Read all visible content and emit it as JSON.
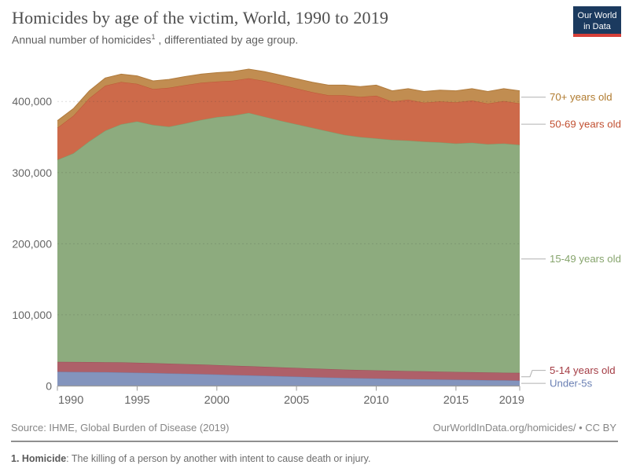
{
  "header": {
    "title": "Homicides by age of the victim, World, 1990 to 2019",
    "subtitle_pre": "Annual number of homicides",
    "subtitle_sup": "1",
    "subtitle_post": " , differentiated by age group.",
    "logo_line1": "Our World",
    "logo_line2": "in Data",
    "logo_bg": "#1b3a5f",
    "logo_stripe": "#d63f38"
  },
  "footer": {
    "source": "Source: IHME, Global Burden of Disease (2019)",
    "attribution": "OurWorldInData.org/homicides/ • CC BY"
  },
  "footnote": {
    "term": "1. Homicide",
    "rest": ": The killing of a person by another with intent to cause death or injury."
  },
  "chart_data": {
    "type": "area",
    "stacked": true,
    "title": "Homicides by age of the victim, World, 1990 to 2019",
    "ylabel": "Annual number of homicides",
    "legend_position": "right",
    "grid": "horizontal-dashed",
    "ylim": [
      0,
      400000
    ],
    "x": [
      1990,
      1991,
      1992,
      1993,
      1994,
      1995,
      1996,
      1997,
      1998,
      1999,
      2000,
      2001,
      2002,
      2003,
      2004,
      2005,
      2006,
      2007,
      2008,
      2009,
      2010,
      2011,
      2012,
      2013,
      2014,
      2015,
      2016,
      2017,
      2018,
      2019
    ],
    "x_ticks": [
      1990,
      1995,
      2000,
      2005,
      2010,
      2015,
      2019
    ],
    "y_ticks": [
      {
        "value": 0,
        "label": "0"
      },
      {
        "value": 100000,
        "label": "100,000"
      },
      {
        "value": 200000,
        "label": "200,000"
      },
      {
        "value": 300000,
        "label": "300,000"
      },
      {
        "value": 400000,
        "label": "400,000"
      }
    ],
    "axis_text_color": "#666666",
    "axis_line_color": "#9a9a9a",
    "series": [
      {
        "name": "Under-5s",
        "fill": "#8394bd",
        "stroke": "#6d84b4",
        "label_color": "#6b80b4",
        "values": [
          20000,
          19800,
          19600,
          19400,
          19100,
          18700,
          18200,
          17700,
          17200,
          16700,
          16100,
          15500,
          14900,
          14300,
          13700,
          13100,
          12500,
          11900,
          11400,
          10900,
          10500,
          10100,
          9700,
          9400,
          9100,
          8800,
          8500,
          8200,
          7900,
          7600
        ]
      },
      {
        "name": "5-14 years old",
        "fill": "#ae6069",
        "stroke": "#9c4e58",
        "label_color": "#a43c44",
        "values": [
          14000,
          14000,
          14100,
          14100,
          14100,
          14000,
          13900,
          13800,
          13600,
          13500,
          13300,
          13100,
          12900,
          12700,
          12500,
          12300,
          12100,
          11900,
          11700,
          11600,
          11500,
          11400,
          11300,
          11200,
          11100,
          11000,
          10900,
          10900,
          10800,
          10800
        ]
      },
      {
        "name": "15-49 years old",
        "fill": "#8dab7e",
        "stroke": "#7b9e6c",
        "label_color": "#86a46c",
        "values": [
          284000,
          293200,
          310300,
          325500,
          334800,
          339300,
          334900,
          333000,
          338200,
          343800,
          348600,
          351400,
          356200,
          351500,
          346800,
          342600,
          338400,
          334200,
          329900,
          327500,
          326000,
          324500,
          324000,
          322900,
          322300,
          321200,
          322600,
          320900,
          322300,
          320600
        ]
      },
      {
        "name": "50-69 years old",
        "fill": "#cd6a4a",
        "stroke": "#bd5635",
        "label_color": "#c14f30",
        "values": [
          45000,
          52800,
          60500,
          63200,
          59400,
          52700,
          50500,
          54800,
          54000,
          52300,
          50000,
          49300,
          48500,
          50300,
          50600,
          50400,
          50100,
          50900,
          55600,
          56400,
          60100,
          53900,
          57600,
          54800,
          57500,
          57700,
          59400,
          57000,
          59600,
          58200
        ]
      },
      {
        "name": "70+ years old",
        "fill": "#c18d51",
        "stroke": "#b07b3c",
        "label_color": "#b07b2f",
        "values": [
          10000,
          10200,
          10500,
          10800,
          11100,
          11300,
          11500,
          11700,
          12000,
          12200,
          12500,
          12700,
          13000,
          13200,
          13400,
          13600,
          13900,
          14100,
          14400,
          14600,
          14900,
          15100,
          15400,
          15700,
          16000,
          16300,
          16600,
          17000,
          17400,
          17800
        ]
      }
    ]
  }
}
